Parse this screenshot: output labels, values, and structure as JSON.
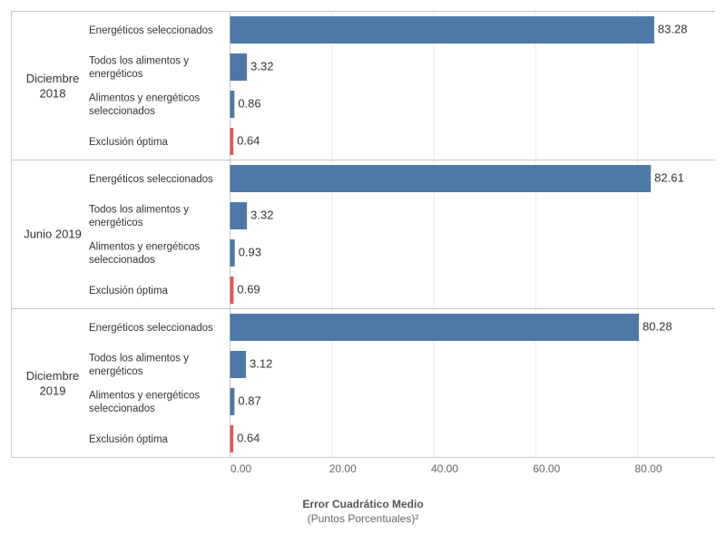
{
  "chart_data": {
    "type": "bar",
    "orientation": "horizontal",
    "groups": [
      {
        "label": "Diciembre 2018",
        "categories": [
          "Energéticos seleccionados",
          "Todos los alimentos y energéticos",
          "Alimentos y energéticos seleccionados",
          "Exclusión óptima"
        ],
        "values": [
          83.28,
          3.32,
          0.86,
          0.64
        ],
        "value_labels": [
          "83.28",
          "3.32",
          "0.86",
          "0.64"
        ]
      },
      {
        "label": "Junio 2019",
        "categories": [
          "Energéticos seleccionados",
          "Todos los alimentos y energéticos",
          "Alimentos y energéticos seleccionados",
          "Exclusión óptima"
        ],
        "values": [
          82.61,
          3.32,
          0.93,
          0.69
        ],
        "value_labels": [
          "82.61",
          "3.32",
          "0.93",
          "0.69"
        ]
      },
      {
        "label": "Diciembre 2019",
        "categories": [
          "Energéticos seleccionados",
          "Todos los alimentos y energéticos",
          "Alimentos y energéticos seleccionados",
          "Exclusión óptima"
        ],
        "values": [
          80.28,
          3.12,
          0.87,
          0.64
        ],
        "value_labels": [
          "80.28",
          "3.12",
          "0.87",
          "0.64"
        ]
      }
    ],
    "highlight_category": "Exclusión óptima",
    "xlim": [
      0,
      90
    ],
    "x_ticks": [
      0,
      20,
      40,
      60,
      80
    ],
    "x_tick_labels": [
      "0.00",
      "20.00",
      "40.00",
      "60.00",
      "80.00"
    ],
    "xlabel": "Error Cuadrático Medio",
    "xlabel_sub": "(Puntos Porcentuales)²",
    "grid": true,
    "colors": {
      "bar": "#4e79a7",
      "highlight": "#e15759",
      "grid": "#ebebeb",
      "border": "#c8c8c8"
    }
  }
}
